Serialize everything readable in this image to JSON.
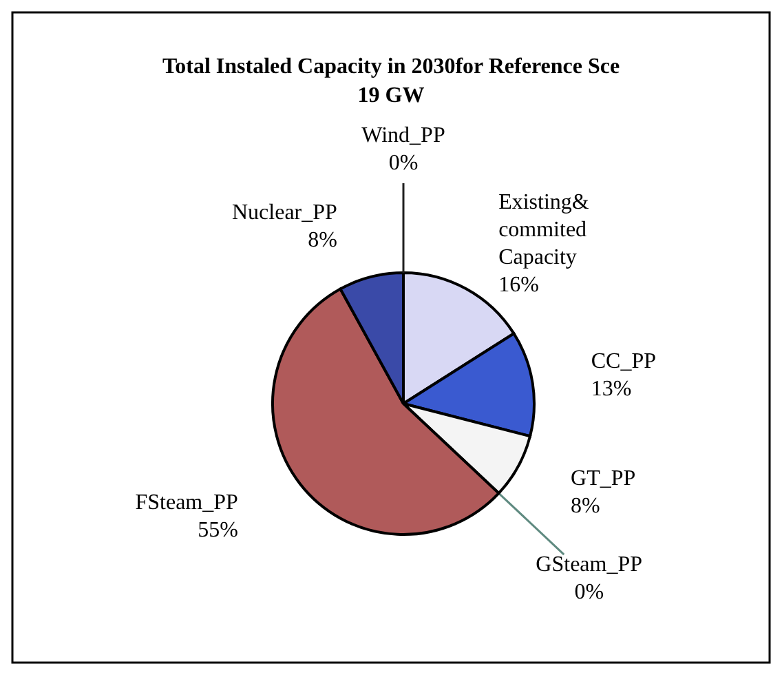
{
  "chart_data": {
    "type": "pie",
    "title": "Total Instaled Capacity in 2030for Reference Sce",
    "subtitle": "19 GW",
    "categories": [
      "Existing& commited Capacity",
      "CC_PP",
      "GT_PP",
      "GSteam_PP",
      "FSteam_PP",
      "Nuclear_PP",
      "Wind_PP"
    ],
    "values": [
      16,
      13,
      8,
      0,
      55,
      8,
      0
    ],
    "value_labels": [
      "16%",
      "13%",
      "8%",
      "0%",
      "55%",
      "8%",
      "0%"
    ],
    "colors": [
      "#d8d8f4",
      "#3a5ad0",
      "#f4f4f4",
      "#5f8a80",
      "#b05a5a",
      "#3a4aa8",
      "#202020"
    ]
  }
}
